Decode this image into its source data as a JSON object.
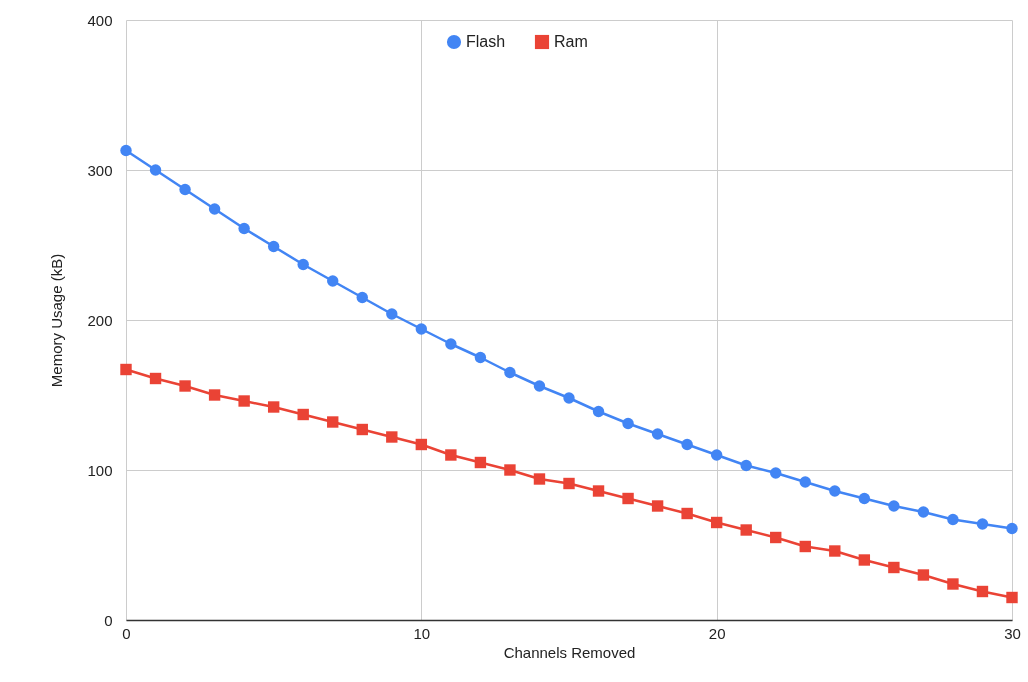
{
  "chart_data": {
    "type": "line",
    "xlabel": "Channels Removed",
    "ylabel": "Memory Usage (kB)",
    "x": [
      0,
      1,
      2,
      3,
      4,
      5,
      6,
      7,
      8,
      9,
      10,
      11,
      12,
      13,
      14,
      15,
      16,
      17,
      18,
      19,
      20,
      21,
      22,
      23,
      24,
      25,
      26,
      27,
      28,
      29,
      30
    ],
    "series": [
      {
        "name": "Flash",
        "color": "#4285f4",
        "marker": "circle",
        "values": [
          313,
          300,
          287,
          274,
          261,
          249,
          237,
          226,
          215,
          204,
          194,
          184,
          175,
          165,
          156,
          148,
          139,
          131,
          124,
          117,
          110,
          103,
          98,
          92,
          86,
          81,
          76,
          72,
          67,
          64,
          61
        ]
      },
      {
        "name": "Ram",
        "color": "#ea4335",
        "marker": "square",
        "values": [
          167,
          161,
          156,
          150,
          146,
          142,
          137,
          132,
          127,
          122,
          117,
          110,
          105,
          100,
          94,
          91,
          86,
          81,
          76,
          71,
          65,
          60,
          55,
          49,
          46,
          40,
          35,
          30,
          24,
          19,
          15
        ]
      }
    ],
    "xlim": [
      0,
      30
    ],
    "xticks": [
      0,
      10,
      20,
      30
    ],
    "ylim": [
      0,
      400
    ],
    "yticks": [
      0,
      100,
      200,
      300,
      400
    ],
    "grid": true,
    "legend": "top",
    "line_style": "solid"
  }
}
